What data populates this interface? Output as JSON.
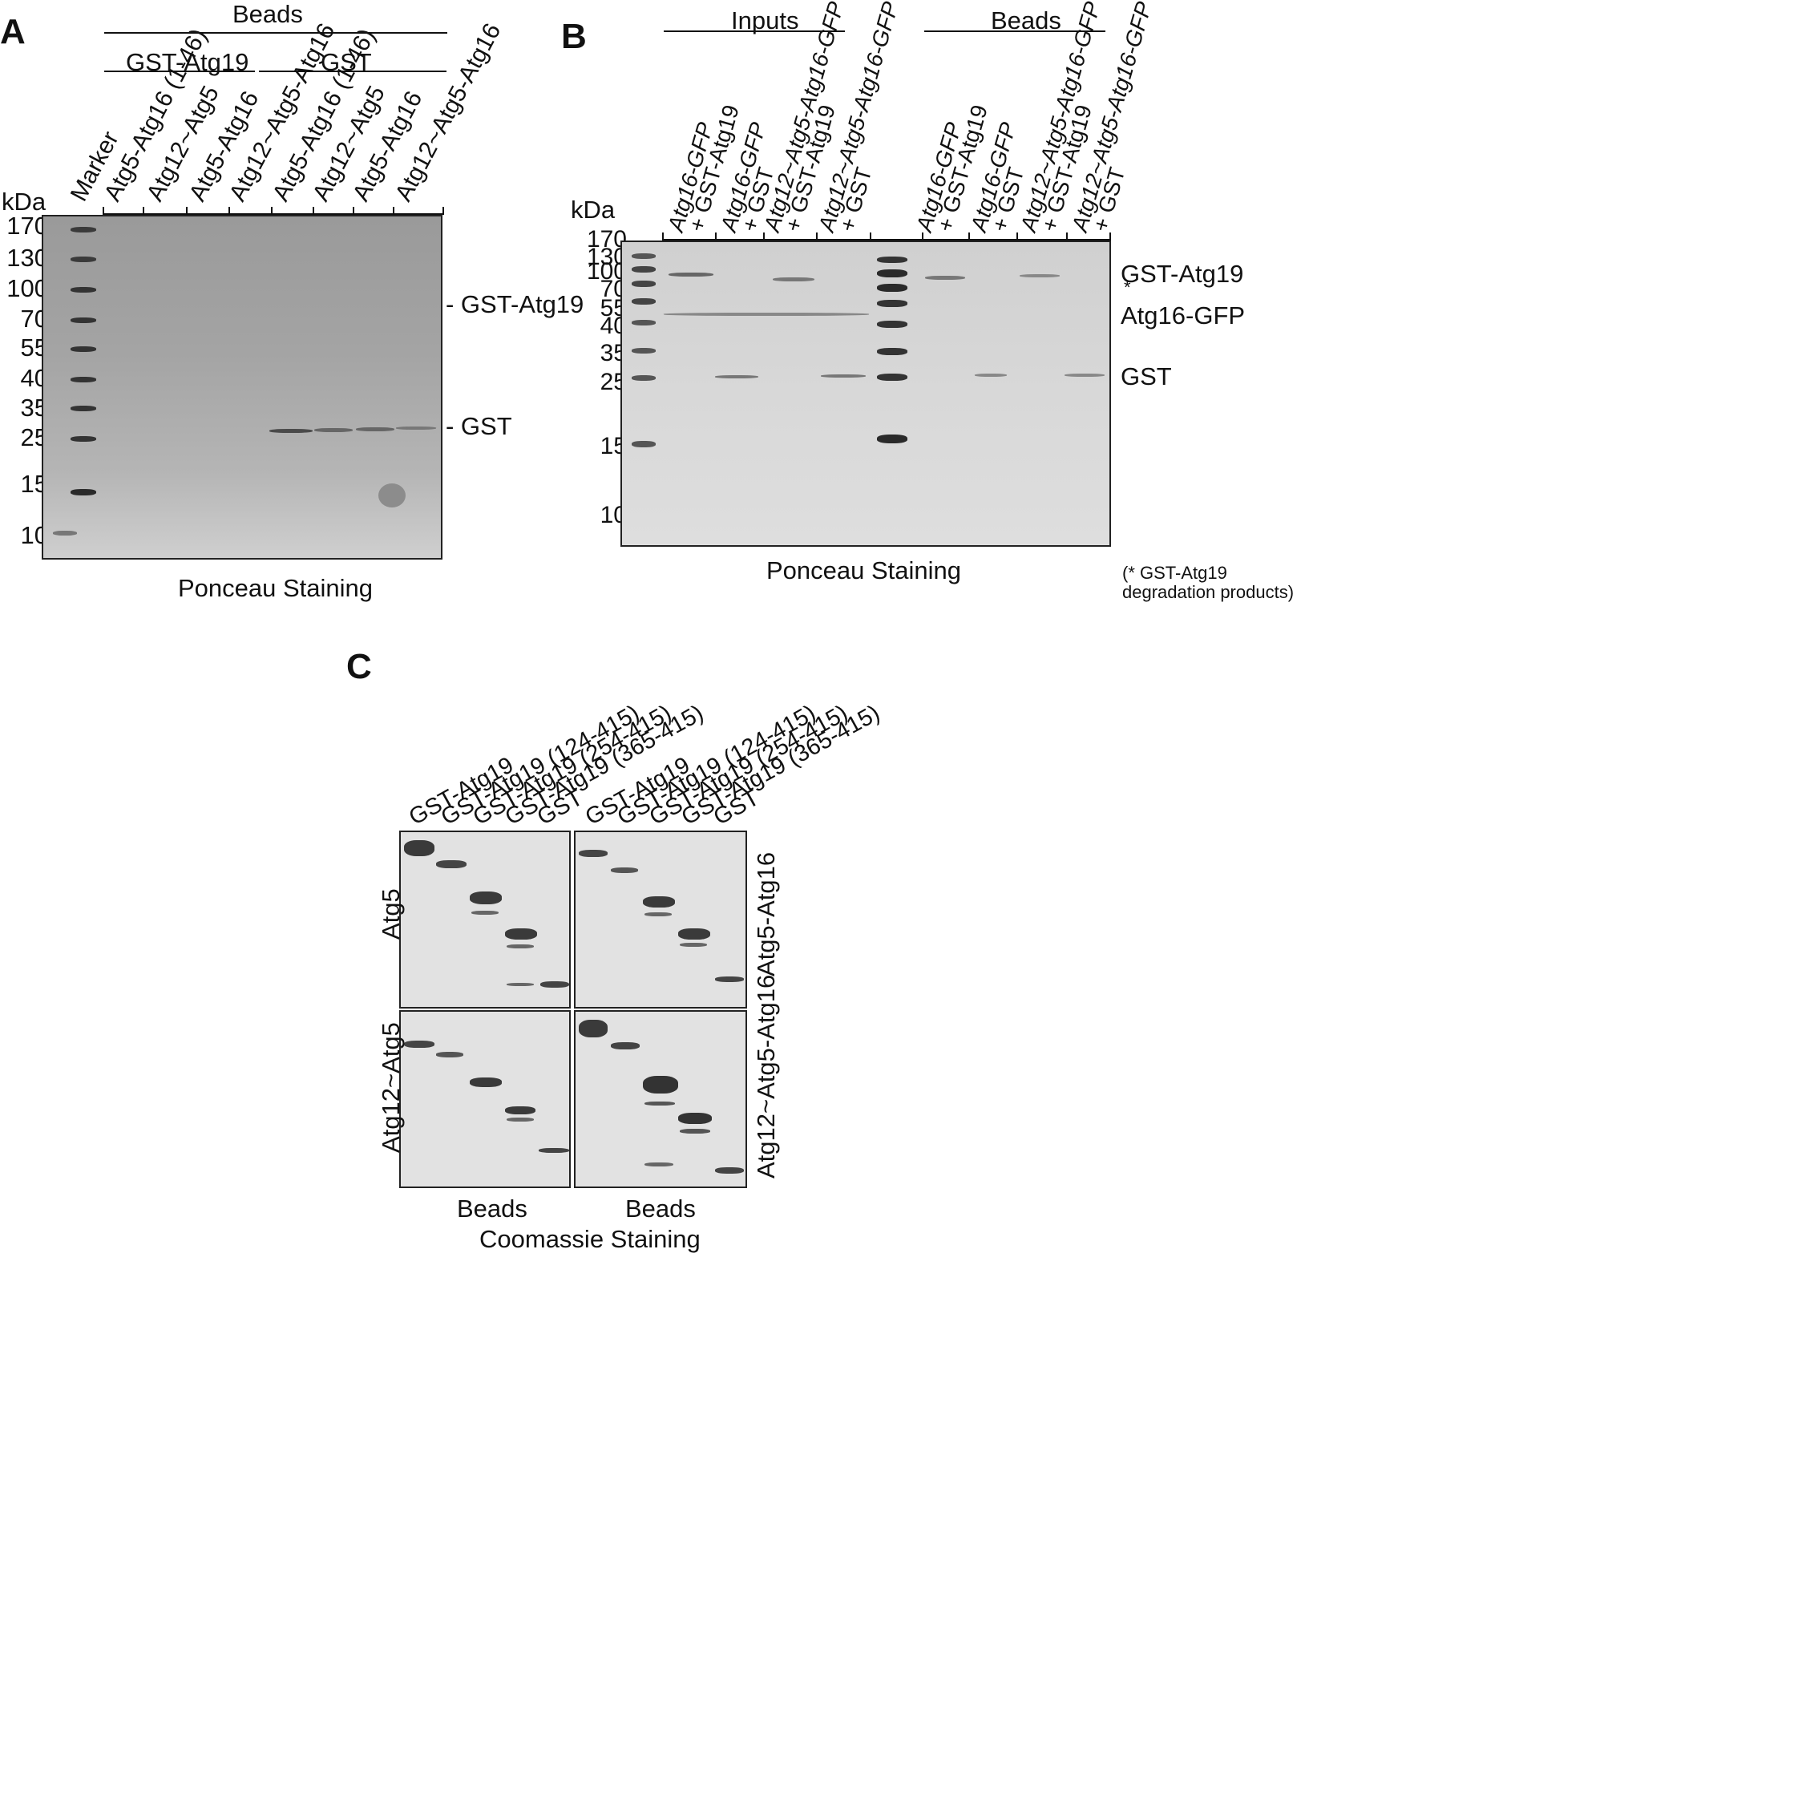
{
  "panelA": {
    "letter": "A",
    "beads_label": "Beads",
    "group1_label": "GST-Atg19",
    "group2_label": "GST",
    "kda_label": "kDa",
    "lanes": [
      "Marker",
      "Atg5-Atg16 (1-46)",
      "Atg12~Atg5",
      "Atg5-Atg16",
      "Atg12~Atg5-Atg16",
      "Atg5-Atg16 (1-46)",
      "Atg12~Atg5",
      "Atg5-Atg16",
      "Atg12~Atg5-Atg16"
    ],
    "mw_markers": [
      "170",
      "130",
      "100",
      "70",
      "55",
      "40",
      "35",
      "25",
      "15",
      "10"
    ],
    "band_labels": [
      "- GST-Atg19",
      "- GST"
    ],
    "caption": "Ponceau Staining"
  },
  "panelB": {
    "letter": "B",
    "inputs_label": "Inputs",
    "beads_label": "Beads",
    "kda_label": "kDa",
    "lanes": [
      {
        "line1": "Atg16-GFP",
        "line2": "+ GST-Atg19"
      },
      {
        "line1": "Atg16-GFP",
        "line2": "+ GST"
      },
      {
        "line1": "Atg12~Atg5-Atg16-GFP",
        "line2": "+ GST-Atg19"
      },
      {
        "line1": "Atg12~Atg5-Atg16-GFP",
        "line2": "+ GST"
      },
      {
        "line1": "Atg16-GFP",
        "line2": "+ GST-Atg19"
      },
      {
        "line1": "Atg16-GFP",
        "line2": "+ GST"
      },
      {
        "line1": "Atg12~Atg5-Atg16-GFP",
        "line2": "+ GST-Atg19"
      },
      {
        "line1": "Atg12~Atg5-Atg16-GFP",
        "line2": "+ GST"
      }
    ],
    "mw_markers": [
      "170",
      "130",
      "100",
      "70",
      "55",
      "40",
      "35",
      "25",
      "15",
      "10"
    ],
    "band_labels": [
      "GST-Atg19",
      "*",
      "Atg16-GFP",
      "GST"
    ],
    "caption": "Ponceau Staining",
    "footnote_line1": "(* GST-Atg19",
    "footnote_line2": "degradation products)"
  },
  "panelC": {
    "letter": "C",
    "lanes": [
      "GST-Atg19",
      "GST-Atg19 (124-415)",
      "GST-Atg19 (254-415)",
      "GST-Atg19 (365-415)",
      "GST"
    ],
    "row_labels_left": [
      "Atg5",
      "Atg12~Atg5"
    ],
    "row_labels_right": [
      "Atg5-Atg16",
      "Atg12~Atg5-Atg16"
    ],
    "col_captions": [
      "Beads",
      "Beads"
    ],
    "caption": "Coomassie Staining"
  }
}
